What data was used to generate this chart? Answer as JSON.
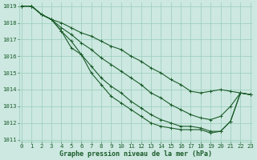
{
  "xlabel": "Graphe pression niveau de la mer (hPa)",
  "xlim": [
    0,
    23
  ],
  "ylim": [
    1011.0,
    1019.2
  ],
  "yticks": [
    1011,
    1012,
    1013,
    1014,
    1015,
    1016,
    1017,
    1018,
    1019
  ],
  "xticks": [
    0,
    1,
    2,
    3,
    4,
    5,
    6,
    7,
    8,
    9,
    10,
    11,
    12,
    13,
    14,
    15,
    16,
    17,
    18,
    19,
    20,
    21,
    22,
    23
  ],
  "bg_color": "#cce8e0",
  "grid_color": "#99ccbb",
  "line_color": "#1a5c2a",
  "series": [
    [
      1019.0,
      1019.0,
      1018.5,
      1018.2,
      1018.0,
      1017.7,
      1017.4,
      1017.2,
      1016.9,
      1016.6,
      1016.4,
      1016.0,
      1015.7,
      1015.3,
      1015.0,
      1014.6,
      1014.3,
      1013.9,
      1013.8,
      1013.9,
      1014.0,
      1013.9,
      1013.8,
      1013.7
    ],
    [
      1019.0,
      1019.0,
      1018.5,
      1018.2,
      1017.7,
      1017.3,
      1016.8,
      1016.4,
      1015.9,
      1015.5,
      1015.1,
      1014.7,
      1014.3,
      1013.8,
      1013.5,
      1013.1,
      1012.8,
      1012.5,
      1012.3,
      1012.2,
      1012.4,
      1013.0,
      1013.8,
      1013.7
    ],
    [
      1019.0,
      1019.0,
      1018.5,
      1018.2,
      1017.5,
      1016.9,
      1016.1,
      1015.4,
      1014.7,
      1014.2,
      1013.8,
      1013.3,
      1012.9,
      1012.5,
      1012.2,
      1012.0,
      1011.8,
      1011.8,
      1011.7,
      1011.5,
      1011.5,
      1012.1,
      1013.8,
      1013.7
    ],
    [
      1019.0,
      1019.0,
      1018.5,
      1018.2,
      1017.5,
      1016.5,
      1016.1,
      1015.0,
      1014.3,
      1013.6,
      1013.2,
      1012.8,
      1012.4,
      1012.0,
      1011.8,
      1011.7,
      1011.6,
      1011.6,
      1011.6,
      1011.4,
      1011.5,
      1012.1,
      1013.8,
      1013.7
    ]
  ],
  "marker": "+",
  "marker_size": 3.5,
  "line_width": 0.8,
  "tick_fontsize": 5.2,
  "label_fontsize": 6.0,
  "label_fontweight": "bold",
  "label_fontfamily": "monospace"
}
